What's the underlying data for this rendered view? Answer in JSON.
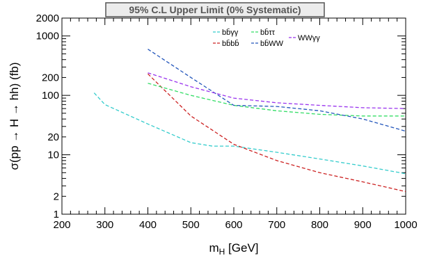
{
  "chart_data": {
    "type": "line",
    "title": "95% C.L Upper Limit (0% Systematic)",
    "xlabel_main": "m",
    "xlabel_sub": "H",
    "xlabel_unit": " [GeV]",
    "ylabel": "σ(pp → H → hh) (fb)",
    "xlim": [
      200,
      1000
    ],
    "ylim": [
      1,
      2000
    ],
    "yscale": "log",
    "xticks": [
      200,
      300,
      400,
      500,
      600,
      700,
      800,
      900,
      1000
    ],
    "yticks": [
      1,
      2,
      10,
      20,
      100,
      200,
      1000,
      2000
    ],
    "ytick_labels": [
      "1",
      "2",
      "10",
      "20",
      "100",
      "200",
      "1000",
      "2000"
    ],
    "legend_position": "top-right",
    "series": [
      {
        "name": "bb̄γγ",
        "color": "#33cccc",
        "x": [
          275,
          300,
          400,
          500,
          550,
          600,
          700,
          800,
          900,
          1000
        ],
        "y": [
          110,
          70,
          33,
          16,
          14,
          14,
          11,
          8.5,
          6.5,
          4.8
        ]
      },
      {
        "name": "bb̄bb̄",
        "color": "#cc2222",
        "x": [
          400,
          500,
          600,
          700,
          800,
          900,
          1000
        ],
        "y": [
          230,
          45,
          15,
          8,
          5,
          3.5,
          2.4
        ]
      },
      {
        "name": "bb̄ττ",
        "color": "#33dd66",
        "x": [
          400,
          500,
          600,
          700,
          800,
          900,
          1000
        ],
        "y": [
          160,
          100,
          68,
          55,
          48,
          45,
          45
        ]
      },
      {
        "name": "bb̄WW",
        "color": "#2255bb",
        "x": [
          400,
          500,
          600,
          700,
          800,
          900,
          1000
        ],
        "y": [
          600,
          200,
          68,
          65,
          55,
          40,
          25
        ]
      },
      {
        "name": "WWγγ",
        "color": "#9933ee",
        "x": [
          400,
          500,
          600,
          700,
          800,
          900,
          1000
        ],
        "y": [
          240,
          140,
          90,
          75,
          68,
          62,
          60
        ]
      }
    ]
  }
}
